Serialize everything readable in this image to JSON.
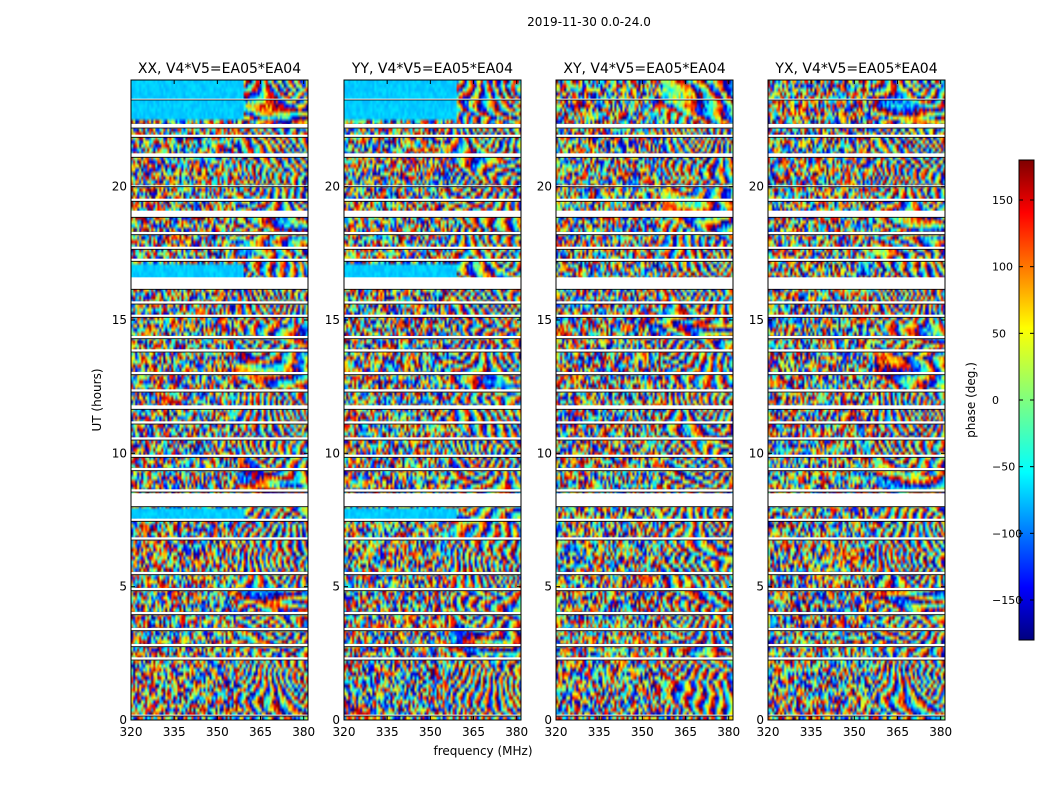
{
  "chart_data": {
    "type": "heatmap",
    "suptitle": "2019-11-30 0.0-24.0",
    "xlabel": "frequency (MHz)",
    "ylabel": "UT (hours)",
    "colorbar_label": "phase (deg.)",
    "colormap": "jet",
    "panels": [
      {
        "title": "XX, V4*V5=EA05*EA04",
        "polarization": "XX"
      },
      {
        "title": "YY, V4*V5=EA05*EA04",
        "polarization": "YY"
      },
      {
        "title": "XY, V4*V5=EA05*EA04",
        "polarization": "XY"
      },
      {
        "title": "YX, V4*V5=EA05*EA04",
        "polarization": "YX"
      }
    ],
    "x_ticks": [
      320,
      335,
      350,
      365,
      380
    ],
    "x_tick_labels": [
      "320",
      "335",
      "350",
      "365",
      "380"
    ],
    "xlim": [
      320,
      381.5
    ],
    "y_ticks": [
      0,
      5,
      10,
      15,
      20
    ],
    "y_tick_labels": [
      "0",
      "5",
      "10",
      "15",
      "20"
    ],
    "ylim": [
      0,
      24
    ],
    "colorbar_ticks": [
      150,
      100,
      50,
      0,
      -50,
      -100,
      -150
    ],
    "colorbar_tick_labels": [
      "150",
      "100",
      "50",
      "0",
      "−50",
      "−100",
      "−150"
    ],
    "clim": [
      -180,
      180
    ],
    "flagged_gaps_ut_hours": [
      [
        23.25,
        23.3
      ],
      [
        22.2,
        22.35
      ],
      [
        21.85,
        21.95
      ],
      [
        21.1,
        21.25
      ],
      [
        20.0,
        20.05
      ],
      [
        19.45,
        19.55
      ],
      [
        18.85,
        19.1
      ],
      [
        18.2,
        18.3
      ],
      [
        17.65,
        17.75
      ],
      [
        17.2,
        17.3
      ],
      [
        16.15,
        16.6
      ],
      [
        15.6,
        15.7
      ],
      [
        15.1,
        15.2
      ],
      [
        14.3,
        14.4
      ],
      [
        13.8,
        13.9
      ],
      [
        12.95,
        13.05
      ],
      [
        12.3,
        12.4
      ],
      [
        11.65,
        11.8
      ],
      [
        11.1,
        11.2
      ],
      [
        10.5,
        10.6
      ],
      [
        9.85,
        9.95
      ],
      [
        9.35,
        9.45
      ],
      [
        8.55,
        8.65
      ],
      [
        8.0,
        8.5
      ],
      [
        7.45,
        7.55
      ],
      [
        6.75,
        6.85
      ],
      [
        5.45,
        5.55
      ],
      [
        4.85,
        4.95
      ],
      [
        3.95,
        4.05
      ],
      [
        3.35,
        3.45
      ],
      [
        2.75,
        2.85
      ],
      [
        2.25,
        2.35
      ],
      [
        0.15,
        0.2
      ]
    ]
  }
}
